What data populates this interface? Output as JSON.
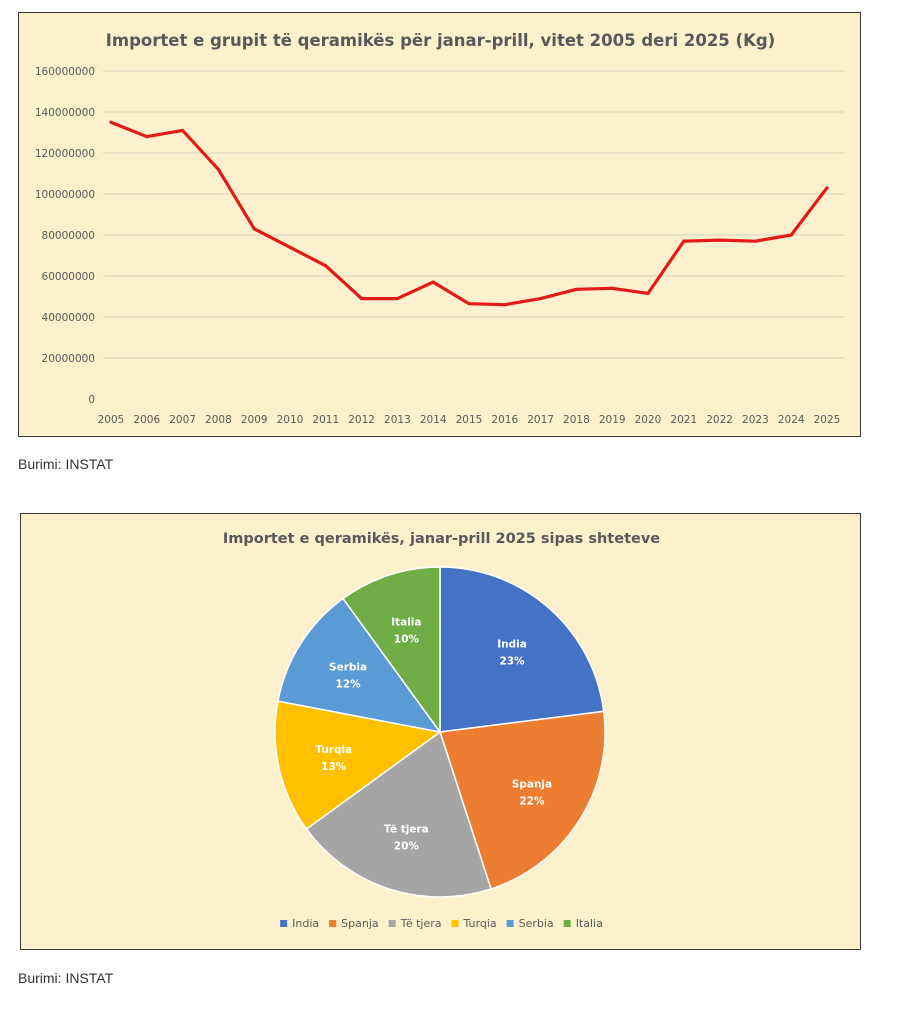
{
  "chart_data": [
    {
      "type": "line",
      "title": "Importet e grupit të qeramikës për janar-prill, vitet 2005 deri 2025 (Kg)",
      "x": [
        "2005",
        "2006",
        "2007",
        "2008",
        "2009",
        "2010",
        "2011",
        "2012",
        "2013",
        "2014",
        "2015",
        "2016",
        "2017",
        "2018",
        "2019",
        "2020",
        "2021",
        "2022",
        "2023",
        "2024",
        "2025"
      ],
      "series": [
        {
          "values": [
            135000000,
            128000000,
            131000000,
            112000000,
            83000000,
            74000000,
            65000000,
            49000000,
            49000000,
            57000000,
            46500000,
            46000000,
            49000000,
            53500000,
            54000000,
            51500000,
            77000000,
            77500000,
            77000000,
            80000000,
            103000000
          ],
          "color": "#e31a1a"
        }
      ],
      "y_ticks": [
        "0",
        "20000000",
        "40000000",
        "60000000",
        "80000000",
        "100000000",
        "120000000",
        "140000000",
        "160000000"
      ],
      "ylim": [
        0,
        160000000
      ],
      "grid": true,
      "legend": "none"
    },
    {
      "type": "pie",
      "title": "Importet e qeramikës, janar-prill  2025 sipas shteteve",
      "slices": [
        {
          "label": "India",
          "value": 23,
          "text": "23%",
          "color": "#4472c4"
        },
        {
          "label": "Spanja",
          "value": 22,
          "text": "22%",
          "color": "#ed7d31"
        },
        {
          "label": "Të tjera",
          "value": 20,
          "text": "20%",
          "color": "#a5a5a5"
        },
        {
          "label": "Turqia",
          "value": 13,
          "text": "13%",
          "color": "#ffc000"
        },
        {
          "label": "Serbia",
          "value": 12,
          "text": "12%",
          "color": "#5b9bd5"
        },
        {
          "label": "Italia",
          "value": 10,
          "text": "10%",
          "color": "#70ad47"
        }
      ],
      "legend": "bottom"
    }
  ],
  "source_line_1": "Burimi: INSTAT",
  "source_line_2": "Burimi: INSTAT"
}
